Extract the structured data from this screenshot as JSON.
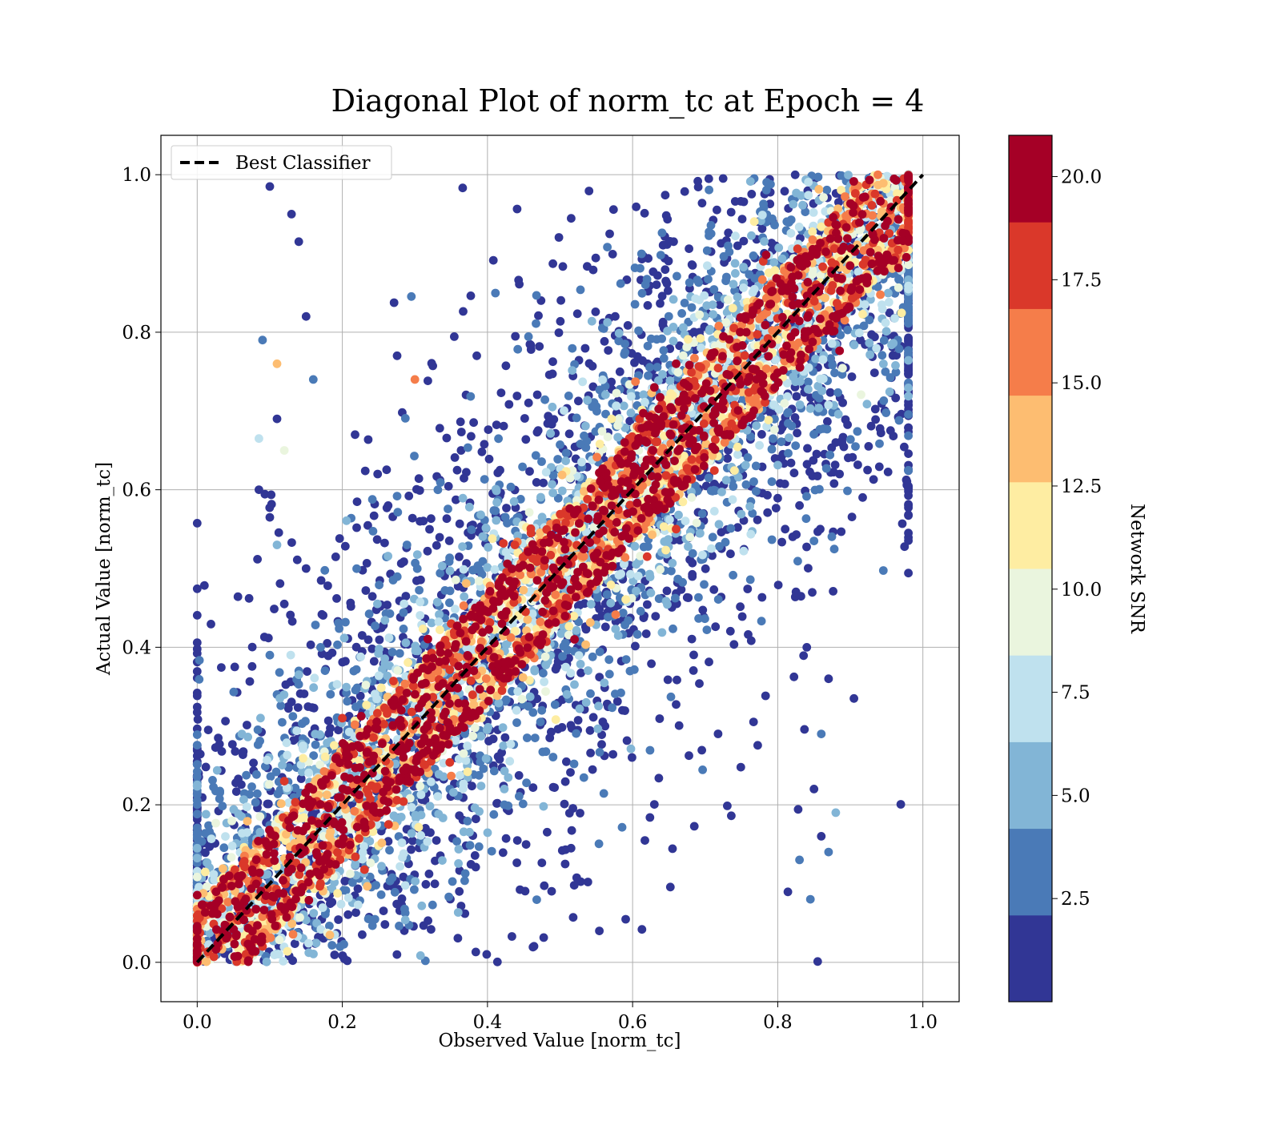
{
  "chart_data": {
    "type": "scatter",
    "title": "Diagonal Plot of norm_tc at Epoch = 4",
    "xlabel": "Observed Value [norm_tc]",
    "ylabel": "Actual Value [norm_tc]",
    "xlim": [
      -0.05,
      1.05
    ],
    "ylim": [
      -0.05,
      1.05
    ],
    "xticks": [
      "0.0",
      "0.2",
      "0.4",
      "0.6",
      "0.8",
      "1.0"
    ],
    "yticks": [
      "0.0",
      "0.2",
      "0.4",
      "0.6",
      "0.8",
      "1.0"
    ],
    "grid": true,
    "legend": {
      "position": "top-left",
      "entries": [
        {
          "label": "Best Classifier",
          "style": "dashed",
          "color": "#000000"
        }
      ]
    },
    "reference_line": {
      "name": "Best Classifier",
      "x": [
        0.0,
        1.0
      ],
      "y": [
        0.0,
        1.0
      ],
      "style": "dashed",
      "color": "#000000"
    },
    "colorbar": {
      "label": "Network SNR",
      "range": [
        0.0,
        21.0
      ],
      "ticks": [
        "2.5",
        "5.0",
        "7.5",
        "10.0",
        "12.5",
        "15.0",
        "17.5",
        "20.0"
      ],
      "tick_values": [
        2.5,
        5.0,
        7.5,
        10.0,
        12.5,
        15.0,
        17.5,
        20.0
      ],
      "bins": [
        {
          "from": 0.0,
          "to": 2.1,
          "color": "#313695"
        },
        {
          "from": 2.1,
          "to": 4.2,
          "color": "#4a7ab7"
        },
        {
          "from": 4.2,
          "to": 6.3,
          "color": "#82b5d6"
        },
        {
          "from": 6.3,
          "to": 8.4,
          "color": "#bfe1ee"
        },
        {
          "from": 8.4,
          "to": 10.5,
          "color": "#eaf5de"
        },
        {
          "from": 10.5,
          "to": 12.6,
          "color": "#feeda2"
        },
        {
          "from": 12.6,
          "to": 14.7,
          "color": "#fdbd71"
        },
        {
          "from": 14.7,
          "to": 16.8,
          "color": "#f57d4a"
        },
        {
          "from": 16.8,
          "to": 18.9,
          "color": "#da382a"
        },
        {
          "from": 18.9,
          "to": 21.0,
          "color": "#a50026"
        }
      ]
    },
    "series": [
      {
        "description_hidden": true,
        "points": [
          [
            0.1,
            0.985,
            1.2
          ],
          [
            0.13,
            0.95,
            1.5
          ],
          [
            0.09,
            0.79,
            2.3
          ],
          [
            0.11,
            0.69,
            1.8
          ],
          [
            0.085,
            0.6,
            1.6
          ],
          [
            0.1,
            0.565,
            1.4
          ],
          [
            0.12,
            0.455,
            2.0
          ],
          [
            0.11,
            0.34,
            3.0
          ],
          [
            0.1,
            0.39,
            2.2
          ],
          [
            0.11,
            0.76,
            14.0
          ],
          [
            0.085,
            0.665,
            6.8
          ],
          [
            0.12,
            0.65,
            9.5
          ],
          [
            0.11,
            0.53,
            6.0
          ],
          [
            0.14,
            0.915,
            1.3
          ],
          [
            0.15,
            0.82,
            1.1
          ],
          [
            0.16,
            0.74,
            2.5
          ],
          [
            0.15,
            0.5,
            1.7
          ],
          [
            0.17,
            0.4,
            2.8
          ],
          [
            0.14,
            0.37,
            4.0
          ],
          [
            0.3,
            0.74,
            15.5
          ],
          [
            0.88,
            0.66,
            1.5
          ],
          [
            0.905,
            0.335,
            1.4
          ],
          [
            0.87,
            0.36,
            1.9
          ],
          [
            0.86,
            0.29,
            2.2
          ],
          [
            0.855,
            0.001,
            1.4
          ],
          [
            0.85,
            0.22,
            1.6
          ],
          [
            0.86,
            0.16,
            1.3
          ],
          [
            0.88,
            0.19,
            6.0
          ],
          [
            0.845,
            0.08,
            3.0
          ],
          [
            0.83,
            0.13,
            2.1
          ],
          [
            0.87,
            0.14,
            2.4
          ],
          [
            0.84,
            0.4,
            1.8
          ],
          [
            0.83,
            0.58,
            1.6
          ],
          [
            0.85,
            0.535,
            2.5
          ],
          [
            0.52,
            0.41,
            20.0
          ],
          [
            0.66,
            0.76,
            19.5
          ],
          [
            0.63,
            0.73,
            19.3
          ],
          [
            0.62,
            0.515,
            17.5
          ],
          [
            0.66,
            0.55,
            17.0
          ],
          [
            0.78,
            0.89,
            17.8
          ],
          [
            0.12,
            0.23,
            17.8
          ],
          [
            0.09,
            0.02,
            18.0
          ],
          [
            0.17,
            0.1,
            17.2
          ],
          [
            0.33,
            0.265,
            17.0
          ],
          [
            0.42,
            0.345,
            17.5
          ],
          [
            0.2,
            0.31,
            17.8
          ],
          [
            0.46,
            0.545,
            17.3
          ],
          [
            0.35,
            0.43,
            17.5
          ],
          [
            0.94,
            0.97,
            16.0
          ],
          [
            0.955,
            0.955,
            17.5
          ]
        ]
      }
    ]
  }
}
